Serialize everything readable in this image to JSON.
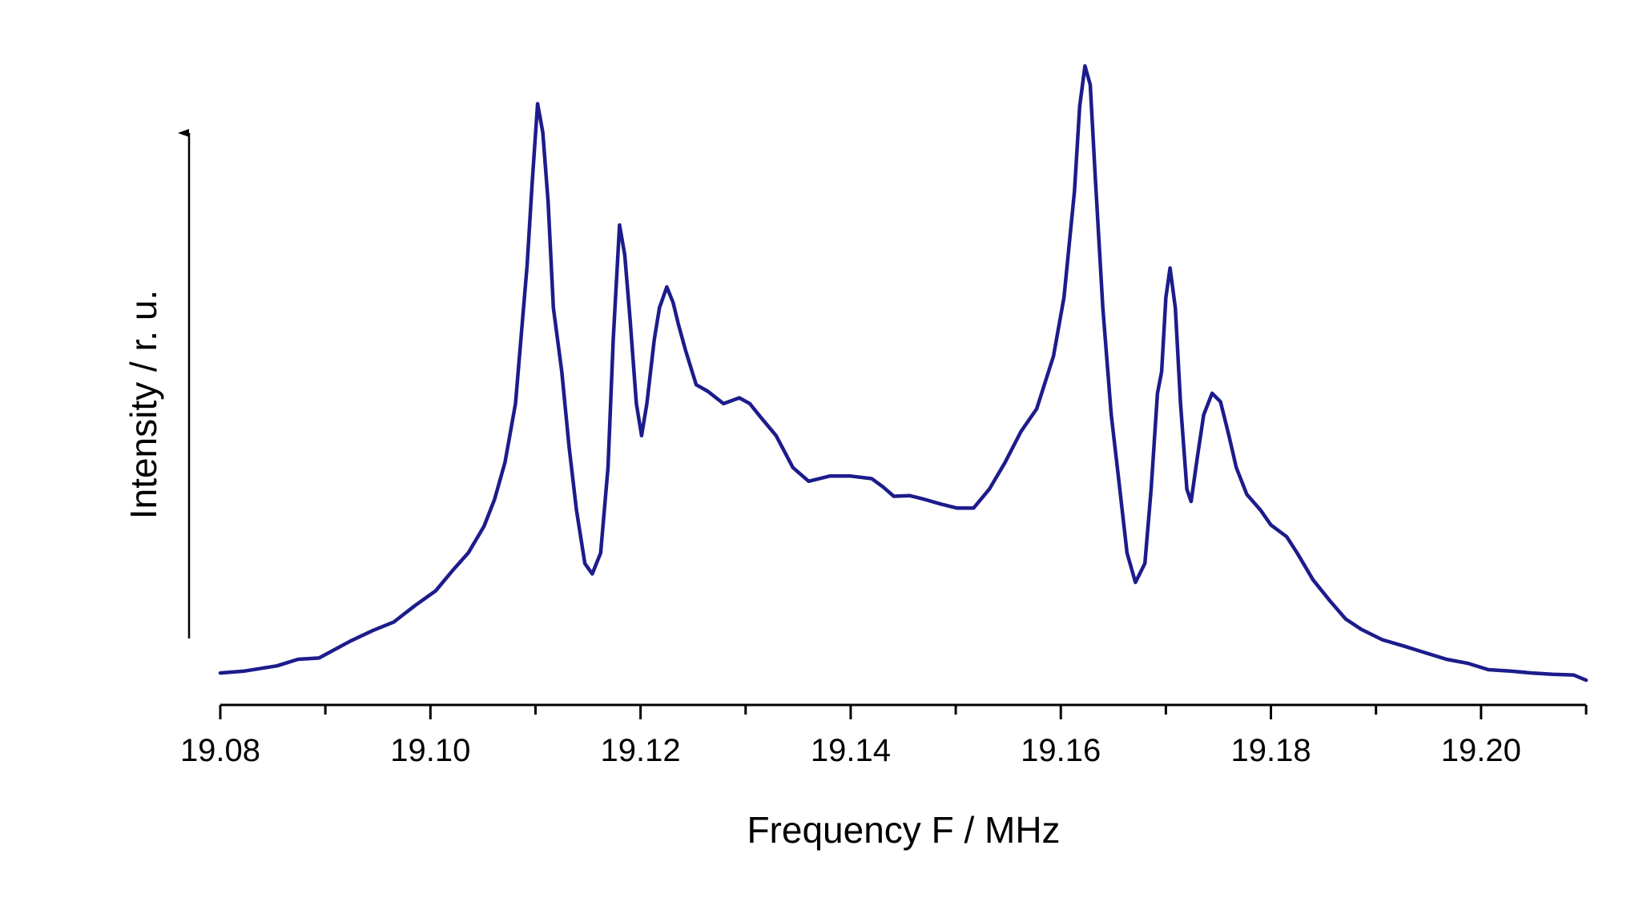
{
  "chart_data": {
    "type": "line",
    "x_label": "Frequency F / MHz",
    "y_label": "Intensity / r. u.",
    "xlim": [
      19.08,
      19.21
    ],
    "xticks": [
      19.08,
      {
        "value": 19.1,
        "label": "19.10"
      },
      19.12,
      19.14,
      19.16,
      19.18,
      {
        "value": 19.2,
        "label": "19.20"
      }
    ],
    "xminorticks": [
      19.09,
      19.11,
      19.13,
      19.15,
      19.17,
      19.19,
      19.21
    ],
    "ylim": [
      0,
      100
    ],
    "x": [
      19.08,
      19.0823,
      19.0854,
      19.0874,
      19.0894,
      19.0924,
      19.0945,
      19.0965,
      19.0985,
      19.1005,
      19.1021,
      19.1036,
      19.1051,
      19.1061,
      19.1071,
      19.1081,
      19.1092,
      19.1097,
      19.1102,
      19.1107,
      19.1112,
      19.1117,
      19.1125,
      19.1132,
      19.1139,
      19.1147,
      19.1154,
      19.1162,
      19.1169,
      19.1174,
      19.118,
      19.1185,
      19.119,
      19.1196,
      19.1201,
      19.1206,
      19.1213,
      19.1218,
      19.1225,
      19.1231,
      19.1236,
      19.1243,
      19.1253,
      19.1264,
      19.1279,
      19.1294,
      19.1304,
      19.1314,
      19.1329,
      19.1345,
      19.136,
      19.138,
      19.14,
      19.142,
      19.1431,
      19.1441,
      19.1456,
      19.1471,
      19.1486,
      19.1501,
      19.1517,
      19.1532,
      19.1547,
      19.1562,
      19.1577,
      19.1593,
      19.1603,
      19.1613,
      19.1618,
      19.1623,
      19.1628,
      19.1633,
      19.164,
      19.1648,
      19.1655,
      19.1663,
      19.1671,
      19.168,
      19.1686,
      19.1692,
      19.1696,
      19.17,
      19.1704,
      19.1709,
      19.1714,
      19.172,
      19.1724,
      19.173,
      19.1736,
      19.1744,
      19.1752,
      19.176,
      19.1767,
      19.1777,
      19.179,
      19.18,
      19.1815,
      19.1825,
      19.184,
      19.1856,
      19.1871,
      19.1886,
      19.1906,
      19.1927,
      19.1947,
      19.1967,
      19.1987,
      19.2007,
      19.2028,
      19.2048,
      19.2068,
      19.2088,
      19.21
    ],
    "series": [
      {
        "color": "#1c1c8c",
        "values": [
          4.9,
          5.2,
          6.0,
          7.0,
          7.2,
          9.8,
          11.4,
          12.7,
          15.2,
          17.5,
          20.6,
          23.3,
          27.4,
          31.5,
          37.2,
          46.2,
          67.4,
          80.4,
          92.2,
          87.8,
          77.2,
          60.9,
          51.1,
          39.6,
          29.9,
          21.7,
          20.1,
          23.3,
          36.4,
          56.0,
          73.6,
          69.0,
          59.2,
          46.2,
          41.3,
          46.2,
          56.0,
          60.9,
          64.1,
          61.7,
          58.4,
          54.3,
          49.1,
          48.1,
          46.2,
          47.1,
          46.2,
          44.2,
          41.3,
          36.4,
          34.3,
          35.1,
          35.1,
          34.7,
          33.4,
          32.0,
          32.1,
          31.5,
          30.8,
          30.2,
          30.2,
          33.1,
          37.2,
          41.9,
          45.4,
          53.5,
          62.5,
          78.8,
          91.8,
          98.0,
          95.1,
          80.4,
          60.9,
          44.5,
          34.7,
          23.3,
          18.8,
          21.7,
          33.1,
          47.8,
          51.1,
          62.5,
          67.0,
          60.9,
          46.2,
          33.1,
          31.2,
          38.0,
          44.5,
          47.8,
          46.5,
          41.3,
          36.4,
          32.3,
          29.9,
          27.6,
          25.8,
          23.3,
          19.2,
          16.0,
          13.2,
          11.6,
          10.0,
          9.0,
          8.0,
          7.0,
          6.4,
          5.4,
          5.2,
          4.9,
          4.7,
          4.6,
          3.8
        ]
      }
    ]
  }
}
